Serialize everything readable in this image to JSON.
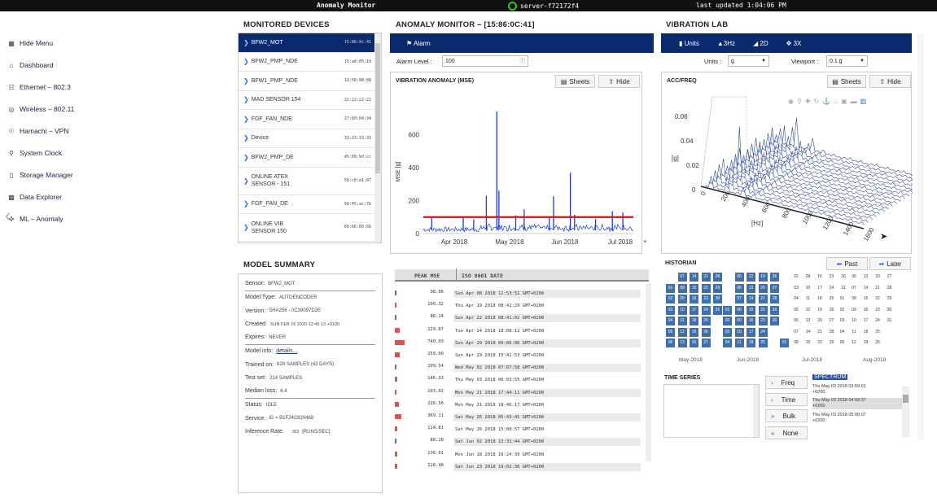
{
  "topbar": {
    "title": "Anomaly Monitor",
    "server": "server-f72172f4",
    "updated": "last updated 1:04:06 PM"
  },
  "nav": {
    "items": [
      {
        "label": "Hide Menu",
        "icon": "sitemap-icon"
      },
      {
        "label": "Dashboard",
        "icon": "home-icon"
      },
      {
        "label": "Ethernet – 802.3",
        "icon": "network-icon"
      },
      {
        "label": "Wireless – 802.11",
        "icon": "wifi-icon"
      },
      {
        "label": "Hamachi – VPN",
        "icon": "vpn-icon"
      },
      {
        "label": "System Clock",
        "icon": "clock-icon"
      },
      {
        "label": "Storage Manager",
        "icon": "storage-icon"
      },
      {
        "label": "Data Explorer",
        "icon": "explorer-icon"
      },
      {
        "label": "ML – Anomaly",
        "icon": "ml-icon"
      }
    ]
  },
  "devices": {
    "title": "MONITORED DEVICES",
    "items": [
      {
        "name": "BFW2_MOT",
        "mac": "15:86:0c:41",
        "selected": true
      },
      {
        "name": "BFW2_PMP_NDE",
        "mac": "15:a8:05:1d"
      },
      {
        "name": "BFW1_PMP_NDE",
        "mac": "19:56:98:88"
      },
      {
        "name": "MAD SENSOR 154",
        "mac": "22:22:22:22"
      },
      {
        "name": "FGF_FAN_NDE",
        "mac": "27:60:04:34"
      },
      {
        "name": "Device",
        "mac": "33:33:33:33"
      },
      {
        "name": "BFW2_PMP_DE",
        "mac": "45:09:9d:cc"
      },
      {
        "name": "ONLINE ATEX SENSOR - 151",
        "mac": "56:c8:a1:87"
      },
      {
        "name": "FGF_FAN_DE",
        "mac": "58:45:ac:7b"
      },
      {
        "name": "ONLINE VIB SENSOR 150",
        "mac": "66:66:66:66"
      }
    ]
  },
  "summary": {
    "title": "MODEL SUMMARY",
    "rows": [
      {
        "k": "Sensor:",
        "v": "BFW2_MOT"
      },
      {
        "k": "Model Type:",
        "v": "AUTOENCODER"
      },
      {
        "k": "Version:",
        "v": "SHA256 - 0C39097D2E"
      },
      {
        "k": "Created:",
        "v": "SUN FEB 16 2020 12:45:13 +0100"
      },
      {
        "k": "Expires:",
        "v": "NEVER"
      },
      {
        "k": "Model info:",
        "v": "details..."
      },
      {
        "k": "Trained on:",
        "v": "628 SAMPLES (43 DAYS)"
      },
      {
        "k": "Test set:",
        "v": "214 SAMPLES"
      },
      {
        "k": "Median loss:",
        "v": "6.4"
      },
      {
        "k": "Status:",
        "v": "IDLE"
      },
      {
        "k": "Service:",
        "v": "ID = B1F24C820468"
      },
      {
        "k": "Inference Rate:",
        "v": "303",
        "u": "[RUNS/SEC]"
      }
    ]
  },
  "anomaly": {
    "title": "ANOMALY MONITOR – [15:86:0C:41]",
    "alarm_tab": "Alarm",
    "alarm_level_label": "Alarm Level :",
    "alarm_level": "100",
    "chart_title": "VIBRATION ANOMALY (MSE)",
    "sheets": "Sheets",
    "hide": "Hide"
  },
  "chart_data": {
    "type": "line",
    "ylabel": "MSE [g]",
    "yticks": [
      "0",
      "200",
      "400",
      "600"
    ],
    "xticks": [
      "Apr 2018",
      "May 2018",
      "Jun 2018",
      "Jul 2018"
    ],
    "ylim": [
      0,
      780
    ],
    "threshold": 100,
    "threshold_color": "#e01010",
    "series_color": "#1a3ad8",
    "spikes": [
      {
        "x": 0.04,
        "y": 98
      },
      {
        "x": 0.19,
        "y": 100
      },
      {
        "x": 0.24,
        "y": 86
      },
      {
        "x": 0.3,
        "y": 229
      },
      {
        "x": 0.35,
        "y": 740
      },
      {
        "x": 0.36,
        "y": 259
      },
      {
        "x": 0.44,
        "y": 110
      },
      {
        "x": 0.48,
        "y": 146
      },
      {
        "x": 0.6,
        "y": 103
      },
      {
        "x": 0.62,
        "y": 226
      },
      {
        "x": 0.7,
        "y": 369
      },
      {
        "x": 0.72,
        "y": 114
      },
      {
        "x": 0.82,
        "y": 88
      },
      {
        "x": 0.9,
        "y": 136
      },
      {
        "x": 0.95,
        "y": 128
      }
    ]
  },
  "table": {
    "h1": "PEAK MSE",
    "h2": "ISO 8601 DATE",
    "rows": [
      {
        "v": "98.06",
        "d": "Sun Apr 08 2018 12:53:51 GMT+0200",
        "c": "#5566dd",
        "w": 2
      },
      {
        "v": "100.32",
        "d": "Thu Apr 19 2018 08:41:29 GMT+0200",
        "c": "#e05050",
        "w": 2
      },
      {
        "v": "86.14",
        "d": "Sun Apr 22 2018 08:41:02 GMT+0200",
        "c": "#5566dd",
        "w": 2
      },
      {
        "v": "229.87",
        "d": "Tue Apr 24 2018 18:08:12 GMT+0200",
        "c": "#e05050",
        "w": 6
      },
      {
        "v": "740.03",
        "d": "Sun Apr 29 2018 00:06:06 GMT+0200",
        "c": "#e05050",
        "w": 12
      },
      {
        "v": "259.00",
        "d": "Sun Apr 29 2018 15:41:53 GMT+0200",
        "c": "#e05050",
        "w": 6
      },
      {
        "v": "109.54",
        "d": "Wed May 02 2018 07:07:58 GMT+0200",
        "c": "#e05050",
        "w": 2
      },
      {
        "v": "146.33",
        "d": "Thu May 03 2018 06:03:55 GMT+0200",
        "c": "#e05050",
        "w": 3
      },
      {
        "v": "103.02",
        "d": "Mon May 21 2018 17:44:11 GMT+0200",
        "c": "#e05050",
        "w": 2
      },
      {
        "v": "226.56",
        "d": "Mon May 21 2018 18:46:17 GMT+0200",
        "c": "#e05050",
        "w": 5
      },
      {
        "v": "369.11",
        "d": "Sat May 26 2018 05:43:45 GMT+0200",
        "c": "#e05050",
        "w": 8
      },
      {
        "v": "114.81",
        "d": "Sat May 26 2018 15:00:57 GMT+0200",
        "c": "#e05050",
        "w": 3
      },
      {
        "v": "88.28",
        "d": "Sat Jun 02 2018 13:31:44 GMT+0200",
        "c": "#5566dd",
        "w": 2
      },
      {
        "v": "136.01",
        "d": "Mon Jun 18 2018 16:24:39 GMT+0200",
        "c": "#e05050",
        "w": 3
      },
      {
        "v": "128.48",
        "d": "Sat Jun 23 2018 19:02:36 GMT+0200",
        "c": "#e05050",
        "w": 3
      }
    ]
  },
  "vib": {
    "title": "VIBRATION LAB",
    "tabs": [
      "Units",
      "3Hz",
      "2D",
      "3X"
    ],
    "units_label": "Units :",
    "units": "g",
    "viewport_label": "Viewport :",
    "viewport": "0.1 g",
    "acc_title": "ACC/FREQ",
    "sheets": "Sheets",
    "hide": "Hide",
    "zlabel": "[g]",
    "ztick": [
      "0.06",
      "0.04",
      "0.02",
      "0"
    ],
    "xlabel": "[Hz]",
    "xtick": [
      "0",
      "200",
      "400",
      "600",
      "800",
      "1000",
      "1200",
      "1400",
      "1600"
    ]
  },
  "historian": {
    "title": "HISTORIAN",
    "past": "Past",
    "later": "Later",
    "months": [
      "May-2018",
      "Jun-2018",
      "Jul-2018",
      "Aug-2018"
    ]
  },
  "timeseries": {
    "title": "TIME SERIES",
    "buttons": [
      "Freq",
      "Time",
      "Bulk",
      "None"
    ],
    "spectrum": "SPECTRUM",
    "entries": [
      "Thu May 03 2018 03:59:01",
      "+0200",
      "Thu May 03 2018 04:59:37",
      "+0200",
      "Thu May 03 2018 05:00:07",
      "+0200"
    ]
  }
}
